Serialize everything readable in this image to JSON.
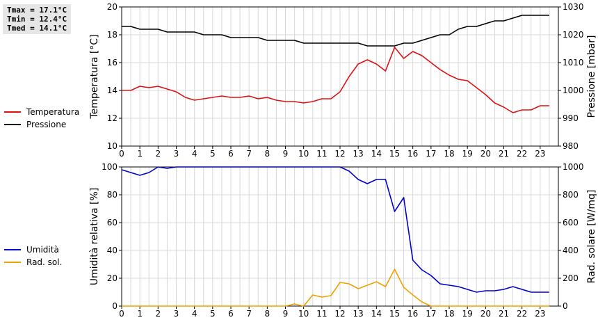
{
  "stats": [
    "Tmax = 17.1°C",
    "Tmin = 12.4°C",
    "Tmed = 14.1°C"
  ],
  "chart_data": [
    {
      "type": "line",
      "ylabel": "Temperatura [°C]",
      "y2label": "Pressione [mbar]",
      "ylim": [
        10,
        20
      ],
      "y2lim": [
        980,
        1030
      ],
      "xlim": [
        0,
        24
      ],
      "x_ticks": [
        "0",
        "1",
        "2",
        "3",
        "4",
        "5",
        "6",
        "7",
        "8",
        "9",
        "10",
        "11",
        "12",
        "13",
        "14",
        "15",
        "16",
        "17",
        "18",
        "19",
        "20",
        "21",
        "22",
        "23"
      ],
      "y_ticks": [
        "10",
        "12",
        "14",
        "16",
        "18",
        "20"
      ],
      "y2_ticks": [
        "980",
        "990",
        "1000",
        "1010",
        "1020",
        "1030"
      ],
      "grid": true,
      "series": [
        {
          "name": "Temperatura",
          "axis": "left",
          "color": "#e01010",
          "x": [
            0,
            0.5,
            1,
            1.5,
            2,
            2.5,
            3,
            3.5,
            4,
            4.5,
            5,
            5.5,
            6,
            6.5,
            7,
            7.5,
            8,
            8.5,
            9,
            9.5,
            10,
            10.5,
            11,
            11.5,
            12,
            12.5,
            13,
            13.5,
            14,
            14.5,
            15,
            15.5,
            16,
            16.5,
            17,
            17.5,
            18,
            18.5,
            19,
            19.5,
            20,
            20.5,
            21,
            21.5,
            22,
            22.5,
            23,
            23.5
          ],
          "values": [
            14.0,
            14.0,
            14.3,
            14.2,
            14.3,
            14.1,
            13.9,
            13.5,
            13.3,
            13.4,
            13.5,
            13.6,
            13.5,
            13.5,
            13.6,
            13.4,
            13.5,
            13.3,
            13.2,
            13.2,
            13.1,
            13.2,
            13.4,
            13.4,
            13.9,
            15.0,
            15.9,
            16.2,
            15.9,
            15.4,
            17.1,
            16.3,
            16.8,
            16.5,
            16.0,
            15.5,
            15.1,
            14.8,
            14.7,
            14.2,
            13.7,
            13.1,
            12.8,
            12.4,
            12.6,
            12.6,
            12.9,
            12.9
          ]
        },
        {
          "name": "Pressione",
          "axis": "right",
          "color": "#000000",
          "x": [
            0,
            0.5,
            1,
            1.5,
            2,
            2.5,
            3,
            3.5,
            4,
            4.5,
            5,
            5.5,
            6,
            6.5,
            7,
            7.5,
            8,
            8.5,
            9,
            9.5,
            10,
            10.5,
            11,
            11.5,
            12,
            12.5,
            13,
            13.5,
            14,
            14.5,
            15,
            15.5,
            16,
            16.5,
            17,
            17.5,
            18,
            18.5,
            19,
            19.5,
            20,
            20.5,
            21,
            21.5,
            22,
            22.5,
            23,
            23.5
          ],
          "values": [
            1023,
            1023,
            1022,
            1022,
            1022,
            1021,
            1021,
            1021,
            1021,
            1020,
            1020,
            1020,
            1019,
            1019,
            1019,
            1019,
            1018,
            1018,
            1018,
            1018,
            1017,
            1017,
            1017,
            1017,
            1017,
            1017,
            1017,
            1016,
            1016,
            1016,
            1016,
            1017,
            1017,
            1018,
            1019,
            1020,
            1020,
            1022,
            1023,
            1023,
            1024,
            1025,
            1025,
            1026,
            1027,
            1027,
            1027,
            1027
          ]
        }
      ]
    },
    {
      "type": "line",
      "ylabel": "Umidità relativa [%]",
      "y2label": "Rad. solare [W/mq]",
      "ylim": [
        0,
        100
      ],
      "y2lim": [
        0,
        1000
      ],
      "xlim": [
        0,
        24
      ],
      "x_ticks": [
        "0",
        "1",
        "2",
        "3",
        "4",
        "5",
        "6",
        "7",
        "8",
        "9",
        "10",
        "11",
        "12",
        "13",
        "14",
        "15",
        "16",
        "17",
        "18",
        "19",
        "20",
        "21",
        "22",
        "23"
      ],
      "y_ticks": [
        "0",
        "20",
        "40",
        "60",
        "80",
        "100"
      ],
      "y2_ticks": [
        "0",
        "200",
        "400",
        "600",
        "800",
        "1000"
      ],
      "grid": true,
      "series": [
        {
          "name": "Umidità",
          "axis": "left",
          "color": "#0000cc",
          "x": [
            0,
            0.5,
            1,
            1.5,
            2,
            2.5,
            3,
            3.5,
            4,
            4.5,
            5,
            5.5,
            6,
            6.5,
            7,
            7.5,
            8,
            8.5,
            9,
            9.5,
            10,
            10.5,
            11,
            11.5,
            12,
            12.5,
            13,
            13.5,
            14,
            14.5,
            15,
            15.5,
            16,
            16.5,
            17,
            17.5,
            18,
            18.5,
            19,
            19.5,
            20,
            20.5,
            21,
            21.5,
            22,
            22.5,
            23,
            23.5
          ],
          "values": [
            98,
            96,
            94,
            96,
            100,
            99,
            100,
            100,
            100,
            100,
            100,
            100,
            100,
            100,
            100,
            100,
            100,
            100,
            100,
            100,
            100,
            100,
            100,
            100,
            100,
            97,
            91,
            88,
            91,
            91,
            68,
            78,
            33,
            26,
            22,
            16,
            15,
            14,
            12,
            10,
            11,
            11,
            12,
            14,
            12,
            10,
            10,
            10
          ]
        },
        {
          "name": "Rad. sol.",
          "axis": "right",
          "color": "#f0a000",
          "x": [
            0,
            0.5,
            1,
            1.5,
            2,
            2.5,
            3,
            3.5,
            4,
            4.5,
            5,
            5.5,
            6,
            6.5,
            7,
            7.5,
            8,
            8.5,
            9,
            9.5,
            10,
            10.5,
            11,
            11.5,
            12,
            12.5,
            13,
            13.5,
            14,
            14.5,
            15,
            15.5,
            16,
            16.5,
            17,
            17.5,
            18,
            18.5,
            19,
            19.5,
            20,
            20.5,
            21,
            21.5,
            22,
            22.5,
            23,
            23.5
          ],
          "values": [
            0,
            0,
            0,
            0,
            0,
            0,
            0,
            0,
            0,
            0,
            0,
            0,
            0,
            0,
            0,
            0,
            0,
            0,
            0,
            15,
            0,
            80,
            65,
            75,
            170,
            160,
            125,
            150,
            175,
            140,
            265,
            135,
            80,
            30,
            0,
            0,
            0,
            0,
            0,
            0,
            0,
            0,
            0,
            0,
            0,
            0,
            0,
            0
          ]
        }
      ]
    }
  ]
}
